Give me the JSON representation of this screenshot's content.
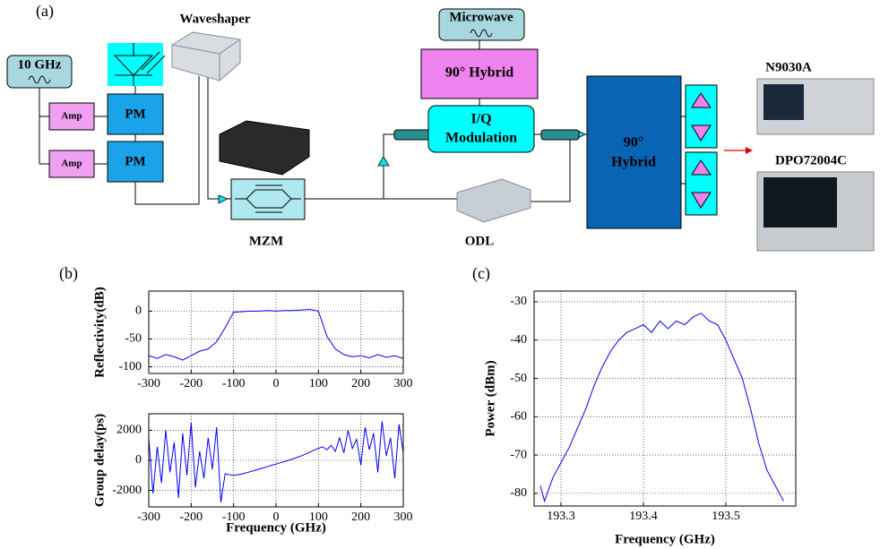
{
  "panel_labels": [
    "(a)",
    "(b)",
    "(c)"
  ],
  "diagram": {
    "source": "10 GHz",
    "amps": [
      "Amp",
      "Amp"
    ],
    "phase_modulators": [
      "PM",
      "PM"
    ],
    "waveshaper": "Waveshaper",
    "mzm": "MZM",
    "microwave": "Microwave",
    "hybrid_rf": "90° Hybrid",
    "iq_modulation": [
      "I/Q",
      "Modulation"
    ],
    "hybrid_optical": [
      "90°",
      "Hybrid"
    ],
    "odl": "ODL",
    "instruments": [
      "N9030A",
      "DPO72004C"
    ]
  },
  "chart_data": [
    {
      "type": "line",
      "y_label": "Reflectivity(dB)",
      "color": "#0000ff",
      "grid": true,
      "xlim": [
        -300,
        300
      ],
      "xticks": [
        -300,
        -200,
        -100,
        0,
        100,
        200,
        300
      ],
      "ylim": [
        -112,
        36
      ],
      "yticks": [
        0,
        -50,
        -100
      ],
      "x": [
        -300,
        -280,
        -260,
        -240,
        -220,
        -200,
        -180,
        -160,
        -140,
        -120,
        -100,
        -80,
        -60,
        -40,
        -20,
        0,
        20,
        40,
        60,
        80,
        100,
        120,
        140,
        160,
        180,
        200,
        220,
        240,
        260,
        280,
        300
      ],
      "values": [
        -80,
        -85,
        -78,
        -82,
        -88,
        -80,
        -72,
        -68,
        -55,
        -30,
        -2,
        -1,
        0,
        0,
        1,
        0,
        1,
        1,
        2,
        3,
        0,
        -45,
        -68,
        -78,
        -82,
        -80,
        -84,
        -78,
        -83,
        -80,
        -85
      ]
    },
    {
      "type": "line",
      "y_label": "Group delay(ps)",
      "x_label": "Frequency (GHz)",
      "color": "#0000ff",
      "grid": true,
      "xlim": [
        -300,
        300
      ],
      "xticks": [
        -300,
        -200,
        -100,
        0,
        100,
        200,
        300
      ],
      "ylim": [
        -3100,
        3100
      ],
      "yticks": [
        2000,
        0,
        -2000
      ],
      "x": [
        -300,
        -290,
        -280,
        -270,
        -260,
        -250,
        -240,
        -230,
        -220,
        -210,
        -200,
        -190,
        -180,
        -170,
        -160,
        -150,
        -140,
        -130,
        -120,
        -110,
        -100,
        -90,
        -80,
        -70,
        -60,
        -50,
        -40,
        -30,
        -20,
        -10,
        0,
        10,
        20,
        30,
        40,
        50,
        60,
        70,
        80,
        90,
        100,
        110,
        120,
        130,
        140,
        150,
        160,
        170,
        180,
        190,
        200,
        210,
        220,
        230,
        240,
        250,
        260,
        270,
        280,
        290,
        300
      ],
      "values": [
        1500,
        -2200,
        900,
        -1500,
        2000,
        -800,
        1200,
        -2500,
        1800,
        -1000,
        2500,
        -1800,
        600,
        -1200,
        1500,
        -600,
        2200,
        -2800,
        -900,
        -950,
        -1000,
        -960,
        -900,
        -830,
        -750,
        -670,
        -590,
        -500,
        -420,
        -330,
        -250,
        -160,
        -80,
        0,
        100,
        200,
        300,
        420,
        550,
        680,
        800,
        900,
        700,
        1000,
        600,
        1500,
        500,
        2000,
        800,
        1400,
        -300,
        2200,
        700,
        1800,
        -800,
        2600,
        300,
        1500,
        -1200,
        2400,
        500
      ]
    },
    {
      "type": "line",
      "y_label": "Power (dBm)",
      "x_label": "Frequency (GHz)",
      "color": "#0000ff",
      "grid": true,
      "xlim": [
        193.2674,
        193.5848
      ],
      "xticks": [
        193.3,
        193.4,
        193.5
      ],
      "ylim": [
        -83.3,
        -27.2
      ],
      "yticks": [
        -30,
        -40,
        -50,
        -60,
        -70,
        -80
      ],
      "x": [
        193.275,
        193.28,
        193.29,
        193.3,
        193.31,
        193.32,
        193.33,
        193.34,
        193.35,
        193.36,
        193.37,
        193.38,
        193.39,
        193.4,
        193.41,
        193.42,
        193.43,
        193.44,
        193.45,
        193.46,
        193.47,
        193.48,
        193.49,
        193.5,
        193.51,
        193.52,
        193.53,
        193.54,
        193.55,
        193.56,
        193.57
      ],
      "values": [
        -78,
        -82,
        -76,
        -72,
        -68,
        -63,
        -58,
        -52,
        -47,
        -43,
        -40,
        -38,
        -37,
        -36,
        -38,
        -35,
        -37,
        -35,
        -36,
        -34,
        -33,
        -35,
        -36,
        -40,
        -45,
        -50,
        -58,
        -67,
        -74,
        -78,
        -82
      ]
    }
  ]
}
